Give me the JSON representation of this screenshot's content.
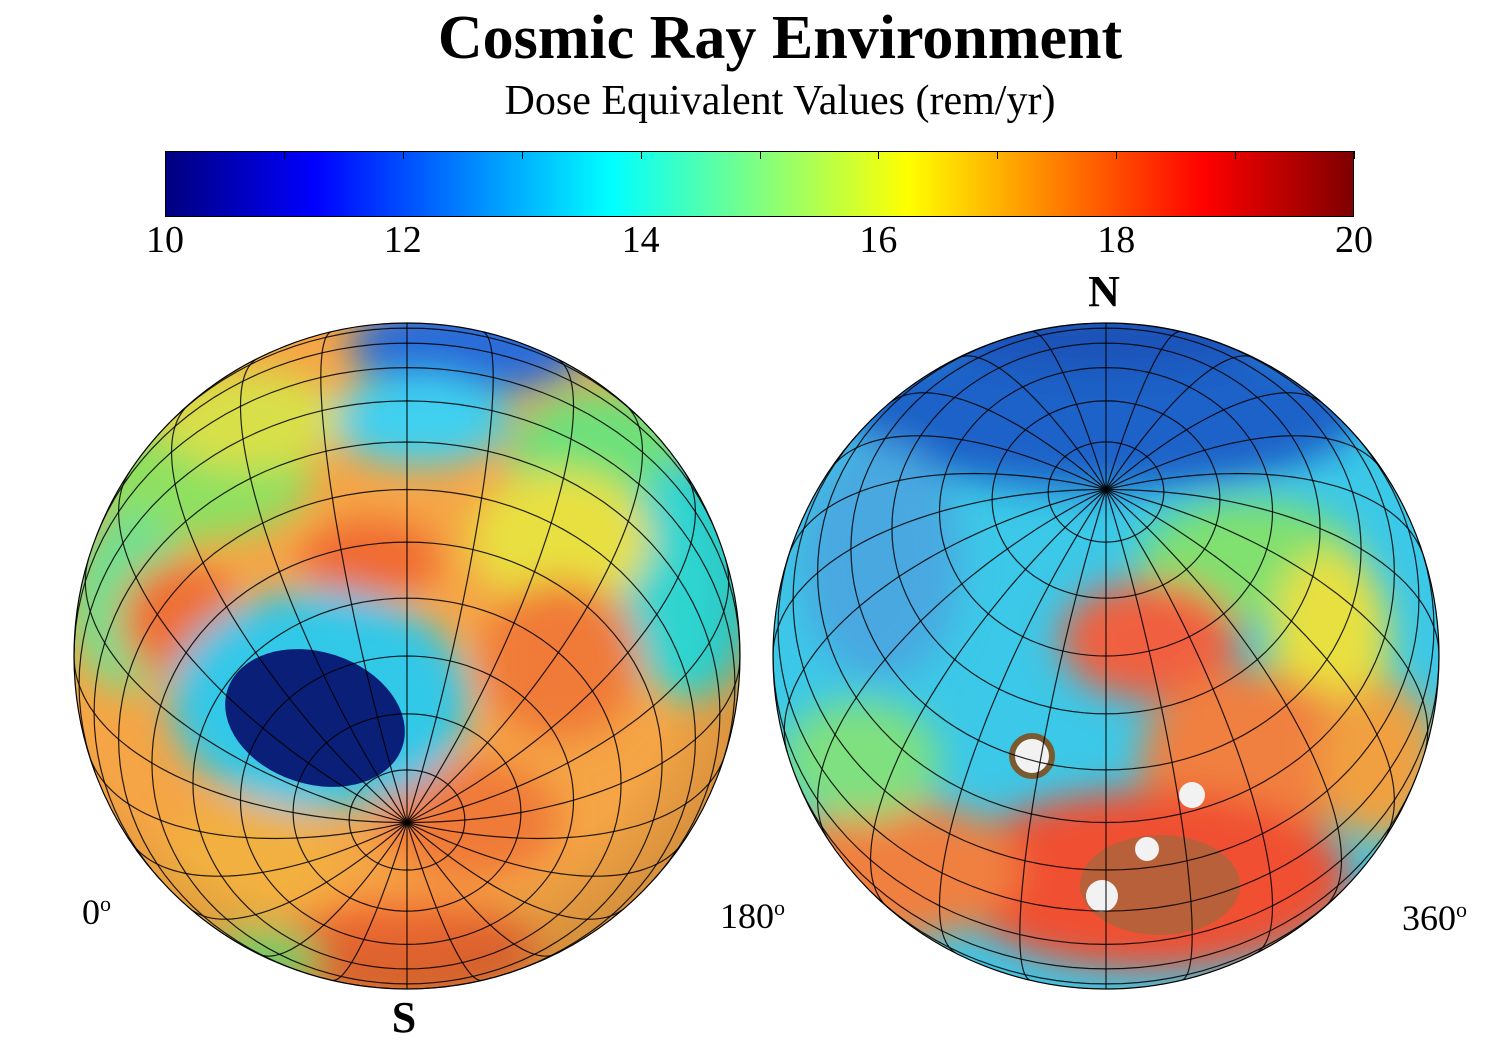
{
  "title": "Cosmic Ray Environment",
  "subtitle": "Dose Equivalent Values (rem/yr)",
  "colorbar": {
    "min": 10,
    "max": 20,
    "tick_labels": [
      "10",
      "12",
      "14",
      "16",
      "18",
      "20"
    ],
    "colors": [
      "#00007f",
      "#0000ff",
      "#0080ff",
      "#00ffff",
      "#80ff80",
      "#ffff00",
      "#ff8000",
      "#ff0000",
      "#7f0000"
    ]
  },
  "globes": {
    "left": {
      "pole_label": "S",
      "lon_start": "0",
      "lon_end": "180",
      "degree_symbol": "o"
    },
    "right": {
      "pole_label": "N",
      "lon_end": "360",
      "degree_symbol": "o"
    }
  }
}
